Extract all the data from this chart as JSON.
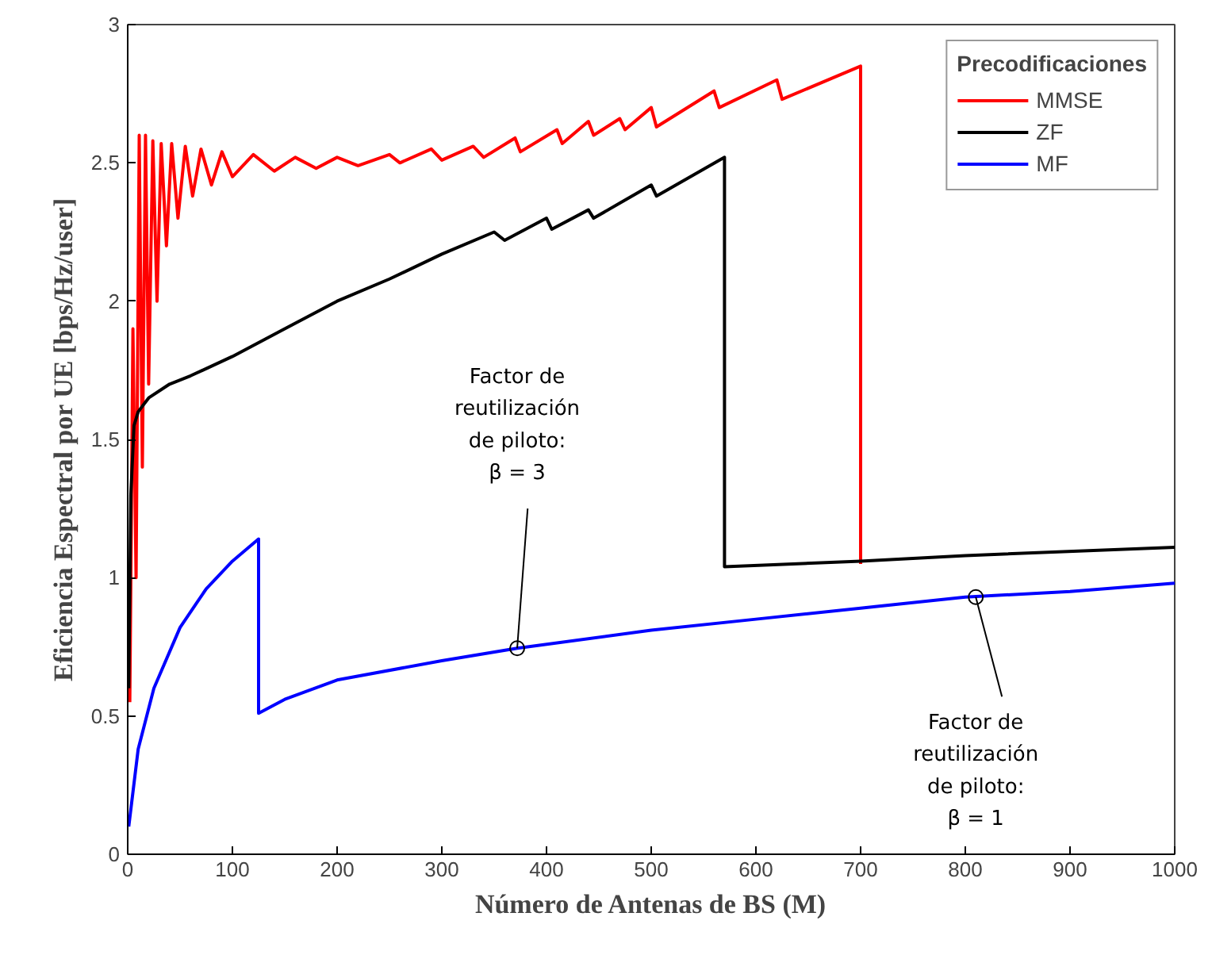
{
  "chart_data": {
    "type": "line",
    "xlabel": "Número de Antenas de BS (M)",
    "ylabel": "Eficiencia Espectral por UE [bps/Hz/user]",
    "legend_title": "Precodificaciones",
    "legend": "top right",
    "grid": false,
    "xlim": [
      0,
      1000
    ],
    "ylim": [
      0,
      3
    ],
    "xticks": [
      0,
      100,
      200,
      300,
      400,
      500,
      600,
      700,
      800,
      900,
      1000
    ],
    "yticks": [
      0,
      0.5,
      1,
      1.5,
      2,
      2.5,
      3
    ],
    "series": [
      {
        "name": "MMSE",
        "color": "#ff0000",
        "x": [
          2,
          5,
          8,
          11,
          14,
          17,
          20,
          24,
          28,
          32,
          37,
          42,
          48,
          55,
          62,
          70,
          80,
          90,
          100,
          120,
          140,
          160,
          180,
          200,
          220,
          250,
          260,
          290,
          300,
          330,
          340,
          370,
          375,
          410,
          415,
          440,
          445,
          470,
          475,
          500,
          505,
          560,
          565,
          620,
          625,
          700,
          700
        ],
        "values": [
          0.55,
          1.9,
          1.0,
          2.6,
          1.4,
          2.6,
          1.7,
          2.58,
          2.0,
          2.57,
          2.2,
          2.57,
          2.3,
          2.56,
          2.38,
          2.55,
          2.42,
          2.54,
          2.45,
          2.53,
          2.47,
          2.52,
          2.48,
          2.52,
          2.49,
          2.53,
          2.5,
          2.55,
          2.51,
          2.56,
          2.52,
          2.59,
          2.54,
          2.62,
          2.57,
          2.65,
          2.6,
          2.66,
          2.62,
          2.7,
          2.63,
          2.76,
          2.7,
          2.8,
          2.73,
          2.85,
          1.05
        ]
      },
      {
        "name": "ZF",
        "color": "#000000",
        "x": [
          1,
          3,
          6,
          10,
          20,
          40,
          60,
          100,
          150,
          200,
          250,
          300,
          350,
          360,
          400,
          405,
          440,
          445,
          500,
          505,
          570,
          570,
          700,
          800,
          1000
        ],
        "values": [
          0.6,
          1.3,
          1.55,
          1.6,
          1.65,
          1.7,
          1.73,
          1.8,
          1.9,
          2.0,
          2.08,
          2.17,
          2.25,
          2.22,
          2.3,
          2.26,
          2.33,
          2.3,
          2.42,
          2.38,
          2.52,
          1.04,
          1.06,
          1.08,
          1.11
        ]
      },
      {
        "name": "MF",
        "color": "#0000ff",
        "x": [
          1,
          10,
          25,
          50,
          75,
          100,
          125,
          125,
          150,
          200,
          300,
          372,
          500,
          600,
          700,
          800,
          900,
          1000
        ],
        "values": [
          0.1,
          0.38,
          0.6,
          0.82,
          0.96,
          1.06,
          1.14,
          0.51,
          0.56,
          0.63,
          0.7,
          0.745,
          0.81,
          0.85,
          0.89,
          0.93,
          0.95,
          0.98
        ]
      }
    ],
    "annotations": [
      {
        "text": "Factor de\nreutilización\nde piloto:\nβ = 3",
        "x": 372,
        "y": 0.745
      },
      {
        "text": "Factor de\nreutilización\nde piloto:\nβ = 1",
        "x": 810,
        "y": 0.93
      }
    ]
  }
}
